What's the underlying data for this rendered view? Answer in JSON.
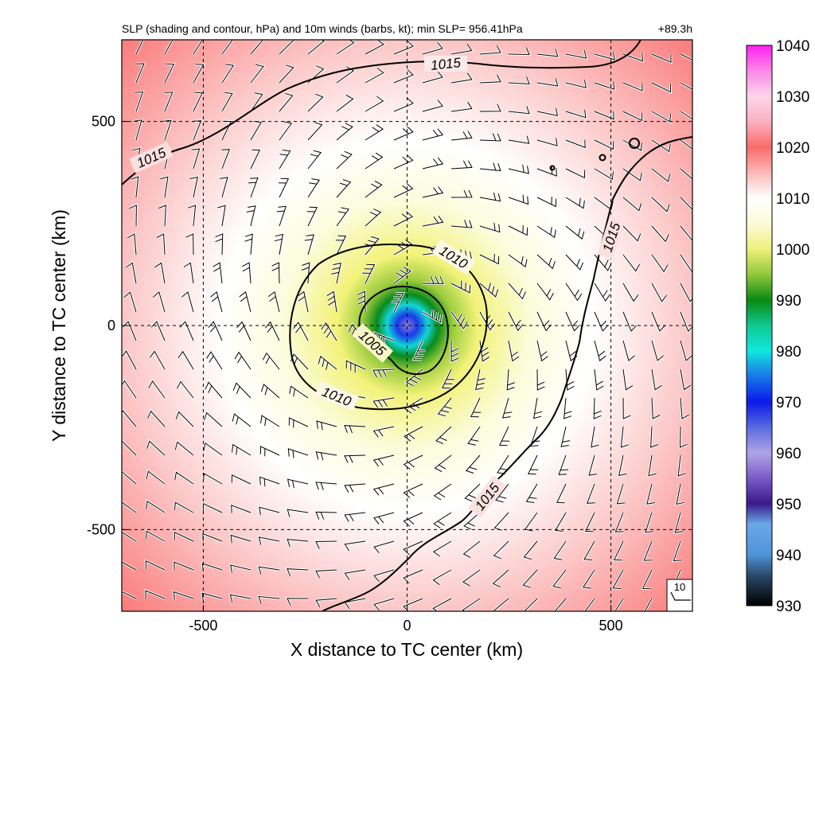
{
  "chart_data": {
    "type": "heatmap",
    "title": "SLP (shading and contour, hPa) and 10m winds (barbs, kt); min SLP= 956.41hPa",
    "time_label": "+89.3h",
    "xlabel": "X distance to TC center (km)",
    "ylabel": "Y distance to TC center (km)",
    "xlim": [
      -700,
      700
    ],
    "ylim": [
      -700,
      700
    ],
    "x_ticks": [
      -500,
      0,
      500
    ],
    "y_ticks": [
      -500,
      0,
      500
    ],
    "grid": "dashed at -500, 0, 500",
    "min_slp_hpa": 956.41,
    "center_km": [
      0,
      0
    ],
    "colorbar": {
      "min": 930,
      "max": 1040,
      "ticks": [
        930,
        940,
        950,
        960,
        970,
        980,
        990,
        1000,
        1010,
        1020,
        1030,
        1040
      ],
      "stops": [
        {
          "value": 930,
          "color": "#000000"
        },
        {
          "value": 936,
          "color": "#2b4a6a"
        },
        {
          "value": 940,
          "color": "#4f93d8"
        },
        {
          "value": 946,
          "color": "#6aa8e8"
        },
        {
          "value": 950,
          "color": "#3a1a8a"
        },
        {
          "value": 955,
          "color": "#7a5ac8"
        },
        {
          "value": 960,
          "color": "#b0a4e8"
        },
        {
          "value": 965,
          "color": "#5a6ae0"
        },
        {
          "value": 970,
          "color": "#0a1ae8"
        },
        {
          "value": 976,
          "color": "#1a8ae8"
        },
        {
          "value": 980,
          "color": "#10e8e0"
        },
        {
          "value": 985,
          "color": "#10c890"
        },
        {
          "value": 990,
          "color": "#0a8a12"
        },
        {
          "value": 995,
          "color": "#90c83a"
        },
        {
          "value": 1000,
          "color": "#eef07a"
        },
        {
          "value": 1005,
          "color": "#fbfbd8"
        },
        {
          "value": 1010,
          "color": "#ffffff"
        },
        {
          "value": 1015,
          "color": "#fbb8b8"
        },
        {
          "value": 1020,
          "color": "#fb6a6a"
        },
        {
          "value": 1025,
          "color": "#fbb0c0"
        },
        {
          "value": 1030,
          "color": "#fcd6ea"
        },
        {
          "value": 1035,
          "color": "#fb88e8"
        },
        {
          "value": 1040,
          "color": "#ff20f0"
        }
      ]
    },
    "contour_labels": [
      "1015",
      "1015",
      "1015",
      "1015",
      "1010",
      "1010",
      "1005"
    ],
    "wind_barbs": "10m winds, counter-clockwise circulation around center",
    "barb_reference": {
      "value": 10,
      "label": "10"
    },
    "colors": {
      "contour": "#000000",
      "grid": "#000000",
      "background_high": "#fb7070"
    }
  }
}
